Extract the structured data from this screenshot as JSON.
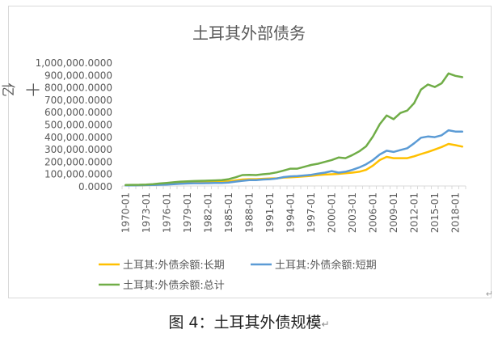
{
  "figure_caption": "图 4：土耳其外债规模",
  "colors": {
    "long": "#ffc000",
    "short": "#5b9bd5",
    "total": "#70ad47",
    "axis_text": "#595959",
    "gridline": "#d9d9d9"
  },
  "chart_data": {
    "type": "line",
    "title": "土耳其外部债务",
    "ylabel": "十亿",
    "xlabel": "",
    "ylim": [
      0,
      1000
    ],
    "y_ticks": [
      "0.0000",
      "100,000.0000",
      "200,000.0000",
      "300,000.0000",
      "400,000.0000",
      "500,000.0000",
      "600,000.0000",
      "700,000.0000",
      "800,000.0000",
      "900,000.0000",
      "1,000,000.0000"
    ],
    "x_tick_labels": [
      "1970-01",
      "1973-01",
      "1976-01",
      "1979-01",
      "1982-01",
      "1985-01",
      "1988-01",
      "1991-01",
      "1994-01",
      "1997-01",
      "2000-01",
      "2003-01",
      "2006-01",
      "2009-01",
      "2012-01",
      "2015-01",
      "2018-01"
    ],
    "x": [
      "1970-01",
      "1971-01",
      "1972-01",
      "1973-01",
      "1974-01",
      "1975-01",
      "1976-01",
      "1977-01",
      "1978-01",
      "1979-01",
      "1980-01",
      "1981-01",
      "1982-01",
      "1983-01",
      "1984-01",
      "1985-01",
      "1986-01",
      "1987-01",
      "1988-01",
      "1989-01",
      "1990-01",
      "1991-01",
      "1992-01",
      "1993-01",
      "1994-01",
      "1995-01",
      "1996-01",
      "1997-01",
      "1998-01",
      "1999-01",
      "2000-01",
      "2001-01",
      "2002-01",
      "2003-01",
      "2004-01",
      "2005-01",
      "2006-01",
      "2007-01",
      "2008-01",
      "2009-01",
      "2010-01",
      "2011-01",
      "2012-01",
      "2013-01",
      "2014-01",
      "2015-01",
      "2016-01",
      "2017-01",
      "2018-01",
      "2019-01"
    ],
    "series": [
      {
        "name": "土耳其:外债余额:长期",
        "color": "#ffc000",
        "values": [
          5,
          5,
          6,
          7,
          9,
          11,
          14,
          18,
          22,
          25,
          28,
          30,
          32,
          33,
          34,
          38,
          45,
          52,
          55,
          55,
          58,
          60,
          62,
          68,
          70,
          73,
          78,
          82,
          88,
          92,
          95,
          98,
          103,
          108,
          115,
          130,
          165,
          210,
          235,
          225,
          225,
          225,
          240,
          258,
          275,
          295,
          315,
          340,
          330,
          318
        ]
      },
      {
        "name": "土耳其:外债余额:短期",
        "color": "#5b9bd5",
        "values": [
          5,
          5,
          6,
          7,
          8,
          10,
          12,
          15,
          18,
          20,
          22,
          22,
          23,
          24,
          25,
          28,
          35,
          42,
          48,
          48,
          52,
          55,
          60,
          72,
          78,
          80,
          85,
          90,
          100,
          108,
          120,
          108,
          115,
          130,
          150,
          175,
          210,
          255,
          285,
          275,
          290,
          305,
          345,
          390,
          400,
          395,
          410,
          450,
          440,
          440
        ]
      },
      {
        "name": "土耳其:外债余额:总计",
        "color": "#70ad47",
        "values": [
          8,
          9,
          10,
          12,
          15,
          20,
          25,
          30,
          35,
          38,
          40,
          42,
          43,
          45,
          47,
          55,
          70,
          88,
          90,
          88,
          95,
          100,
          110,
          125,
          140,
          140,
          155,
          170,
          180,
          195,
          210,
          230,
          225,
          250,
          280,
          320,
          400,
          500,
          570,
          540,
          590,
          610,
          670,
          780,
          820,
          800,
          830,
          910,
          890,
          880
        ]
      }
    ],
    "legend_position": "bottom",
    "grid": false
  }
}
